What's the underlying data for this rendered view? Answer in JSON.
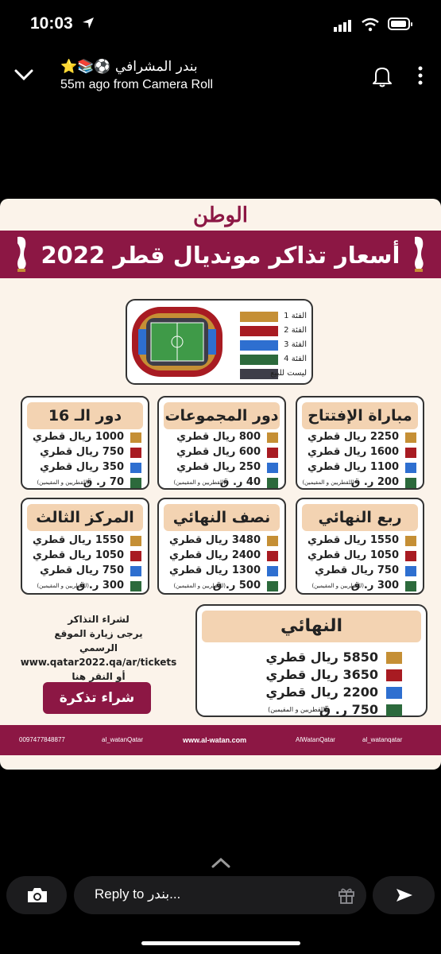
{
  "status_bar": {
    "time": "10:03"
  },
  "header": {
    "name": "بندر المشرافي ⚽📚⭐",
    "subtitle": "55m ago from Camera Roll"
  },
  "poster": {
    "logo": "الوطن",
    "title": "أسعار تذاكر مونديال قطر 2022",
    "legend": [
      {
        "label": "الفئة 1",
        "color": "#c58f35"
      },
      {
        "label": "الفئة 2",
        "color": "#a81b22"
      },
      {
        "label": "الفئة 3",
        "color": "#2e6fd0"
      },
      {
        "label": "الفئة 4",
        "color": "#2c6a3c"
      },
      {
        "label": "ليست للبيع",
        "color": "#3d3d48"
      }
    ],
    "note": "(للقطريين و المقيمين)",
    "cards": [
      {
        "title": "مباراة الإفتتاح",
        "prices": [
          "2250 ريال قطري",
          "1600 ريال قطري",
          "1100 ريال قطري",
          "200 ر. ق"
        ]
      },
      {
        "title": "دور المجموعات",
        "prices": [
          "800 ريال قطري",
          "600 ريال قطري",
          "250 ريال قطري",
          "40 ر. ق"
        ]
      },
      {
        "title": "دور الـ 16",
        "prices": [
          "1000 ريال قطري",
          "750 ريال قطري",
          "350 ريال قطري",
          "70 ر. ق"
        ]
      },
      {
        "title": "ربع النهائي",
        "prices": [
          "1550 ريال قطري",
          "1050 ريال قطري",
          "750 ريال قطري",
          "300 ر. ق"
        ]
      },
      {
        "title": "نصف النهائي",
        "prices": [
          "3480 ريال قطري",
          "2400 ريال قطري",
          "1300 ريال قطري",
          "500 ر. ق"
        ]
      },
      {
        "title": "المركز الثالث",
        "prices": [
          "1550 ريال قطري",
          "1050 ريال قطري",
          "750 ريال قطري",
          "300 ر. ق"
        ]
      }
    ],
    "final": {
      "title": "النهائي",
      "prices": [
        "5850 ريال قطري",
        "3650 ريال قطري",
        "2200 ريال قطري",
        "750 ر. ق"
      ]
    },
    "buy_info": {
      "line1": "لشراء التذاكر",
      "line2": "يرجى زيارة الموقع",
      "line3": "الرسمي",
      "line4": "www.qatar2022.qa/ar/tickets",
      "line5": "أو النقر هنا"
    },
    "buy_button": "شراء تذكرة",
    "footer": {
      "phone": "0097477848877",
      "twitter": "al_watanQatar",
      "website": "www.al-watan.com",
      "facebook": "AlWatanQatar",
      "instagram": "al_watanqatar"
    }
  },
  "reply": {
    "placeholder": "Reply to بندر..."
  }
}
